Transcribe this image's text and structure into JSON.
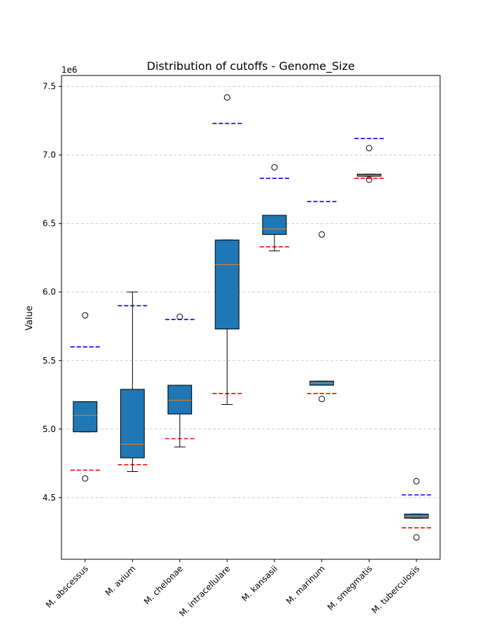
{
  "chart_data": {
    "type": "box",
    "title": "Distribution of cutoffs - Genome_Size",
    "xlabel": "",
    "ylabel": "Value",
    "scale_note": "1e6",
    "ylim": [
      4.05,
      7.58
    ],
    "yticks": [
      "4.5",
      "5.0",
      "5.5",
      "6.0",
      "6.5",
      "7.0",
      "7.5"
    ],
    "grid": "horizontal dashed",
    "categories": [
      "M. abscessus",
      "M. avium",
      "M. chelonae",
      "M. intracellulare",
      "M. kansasii",
      "M. marinum",
      "M. smegmatis",
      "M. tuberculosis"
    ],
    "boxes": [
      {
        "whisker_low": 4.98,
        "q1": 4.98,
        "median": 5.1,
        "q3": 5.2,
        "whisker_high": 5.2,
        "outliers": [
          5.83,
          4.64
        ],
        "upper_cutoff": 5.6,
        "lower_cutoff": 4.7
      },
      {
        "whisker_low": 4.69,
        "q1": 4.79,
        "median": 4.89,
        "q3": 5.29,
        "whisker_high": 6.0,
        "outliers": [],
        "upper_cutoff": 5.9,
        "lower_cutoff": 4.74
      },
      {
        "whisker_low": 4.87,
        "q1": 5.11,
        "median": 5.21,
        "q3": 5.32,
        "whisker_high": 5.32,
        "outliers": [
          5.82
        ],
        "upper_cutoff": 5.8,
        "lower_cutoff": 4.93
      },
      {
        "whisker_low": 5.18,
        "q1": 5.73,
        "median": 6.2,
        "q3": 6.38,
        "whisker_high": 6.38,
        "outliers": [
          7.42
        ],
        "upper_cutoff": 7.23,
        "lower_cutoff": 5.26
      },
      {
        "whisker_low": 6.3,
        "q1": 6.42,
        "median": 6.46,
        "q3": 6.56,
        "whisker_high": 6.56,
        "outliers": [
          6.91
        ],
        "upper_cutoff": 6.83,
        "lower_cutoff": 6.33
      },
      {
        "whisker_low": 5.32,
        "q1": 5.32,
        "median": 5.335,
        "q3": 5.35,
        "whisker_high": 5.35,
        "outliers": [
          6.42,
          5.22
        ],
        "upper_cutoff": 6.66,
        "lower_cutoff": 5.26
      },
      {
        "whisker_low": 6.845,
        "q1": 6.845,
        "median": 6.85,
        "q3": 6.86,
        "whisker_high": 6.86,
        "outliers": [
          7.05,
          6.82
        ],
        "upper_cutoff": 7.12,
        "lower_cutoff": 6.83
      },
      {
        "whisker_low": 4.35,
        "q1": 4.35,
        "median": 4.365,
        "q3": 4.38,
        "whisker_high": 4.38,
        "outliers": [
          4.62,
          4.21
        ],
        "upper_cutoff": 4.52,
        "lower_cutoff": 4.28
      }
    ],
    "colors": {
      "box_fill": "#1f77b4",
      "median": "#ff7f0e",
      "upper_cutoff": "#0000ff",
      "lower_cutoff": "#ff0000",
      "grid": "#cccccc"
    }
  }
}
